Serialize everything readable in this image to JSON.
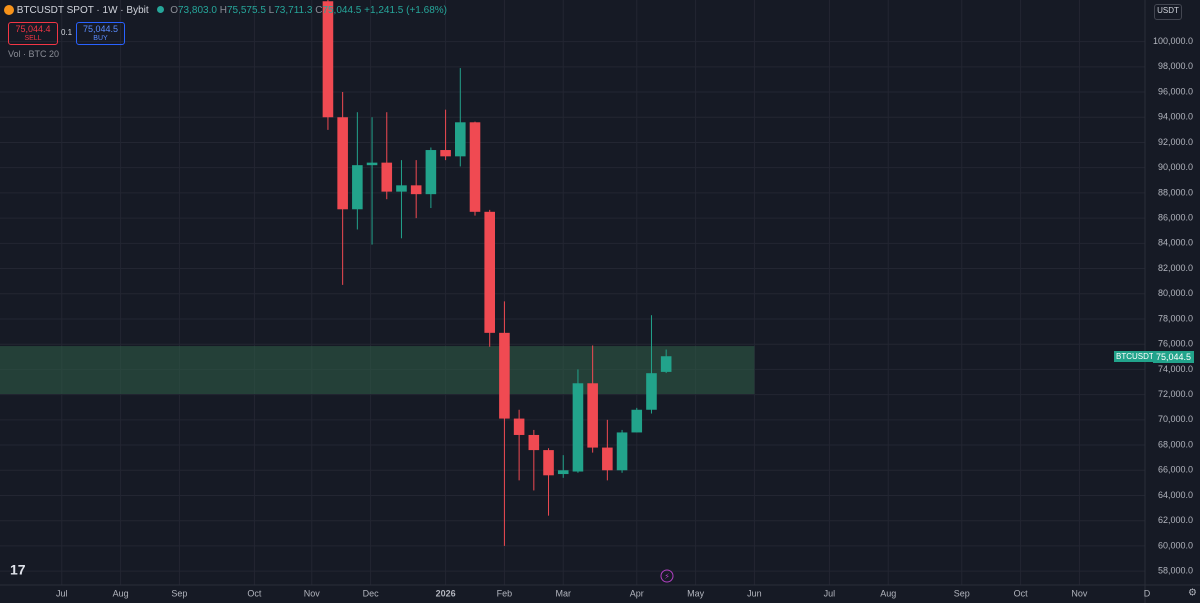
{
  "header": {
    "symbol": "BTCUSDT SPOT · 1W · Bybit",
    "o_label": "O",
    "o": "73,803.0",
    "h_label": "H",
    "h": "75,575.5",
    "l_label": "L",
    "l": "73,711.3",
    "c_label": "C",
    "c": "75,044.5",
    "change": "+1,241.5 (+1.68%)",
    "sell_price": "75,044.4",
    "sell": "SELL",
    "qty": "0.1",
    "buy_price": "75,044.5",
    "buy": "BUY",
    "volume": "Vol · BTC 20",
    "currency": "USDT",
    "price_tag_symbol": "BTCUSDT",
    "price_tag": "75,044.5"
  },
  "chart_data": {
    "type": "candlestick",
    "x": [
      0,
      1,
      2,
      3,
      4,
      5,
      6,
      7,
      8,
      9,
      10,
      11,
      12,
      13,
      14,
      15,
      16,
      17,
      18,
      19,
      20,
      21,
      22,
      23
    ],
    "open": [
      103200,
      94000,
      86700,
      90200,
      90400,
      88100,
      88600,
      87900,
      91400,
      90900,
      93600,
      86500,
      76900,
      70100,
      68800,
      67600,
      65700,
      65900,
      72900,
      67800,
      66000,
      69000,
      70800,
      73803
    ],
    "high": [
      103300,
      96000,
      94400,
      94000,
      94400,
      90600,
      90600,
      91600,
      94600,
      97900,
      93650,
      86650,
      79400,
      70800,
      69200,
      67750,
      67200,
      74000,
      75900,
      70000,
      69200,
      70950,
      78300,
      75575.5
    ],
    "low": [
      93000,
      80700,
      85100,
      83900,
      87500,
      84400,
      86000,
      86800,
      90600,
      90100,
      86200,
      75800,
      60000,
      65200,
      64400,
      62400,
      65400,
      65800,
      67400,
      65200,
      65800,
      69000,
      70500,
      73711.3
    ],
    "close": [
      94000,
      86700,
      90200,
      90400,
      88100,
      88600,
      87900,
      91400,
      90900,
      93600,
      86500,
      76900,
      70100,
      68800,
      67600,
      65600,
      66000,
      72900,
      67800,
      66000,
      69000,
      70800,
      73700,
      75044.5
    ],
    "up_color": "#22a38b",
    "down_color": "#f04a52",
    "zone": {
      "low": 72050,
      "high": 75850,
      "end": 29,
      "color": "#2f5a46"
    },
    "xlim": [
      -22.3,
      55.9
    ],
    "xticks": [
      {
        "value": -18.1,
        "label": "Jul"
      },
      {
        "value": -14.1,
        "label": "Aug"
      },
      {
        "value": -10.1,
        "label": "Sep"
      },
      {
        "value": -5.0,
        "label": "Oct"
      },
      {
        "value": -1.1,
        "label": "Nov"
      },
      {
        "value": 2.9,
        "label": "Dec"
      },
      {
        "value": 8.0,
        "label": "2026"
      },
      {
        "value": 12.0,
        "label": "Feb"
      },
      {
        "value": 16.0,
        "label": "Mar"
      },
      {
        "value": 21.0,
        "label": "Apr"
      },
      {
        "value": 25.0,
        "label": "May"
      },
      {
        "value": 29.0,
        "label": "Jun"
      },
      {
        "value": 34.1,
        "label": "Jul"
      },
      {
        "value": 38.1,
        "label": "Aug"
      },
      {
        "value": 43.1,
        "label": "Sep"
      },
      {
        "value": 47.1,
        "label": "Oct"
      },
      {
        "value": 51.1,
        "label": "Nov"
      },
      {
        "value": 55.7,
        "label": "D"
      }
    ],
    "ylim": [
      56900,
      103300
    ],
    "yticks": [
      {
        "value": 58000,
        "label": "58,000.0"
      },
      {
        "value": 60000,
        "label": "60,000.0"
      },
      {
        "value": 62000,
        "label": "62,000.0"
      },
      {
        "value": 64000,
        "label": "64,000.0"
      },
      {
        "value": 66000,
        "label": "66,000.0"
      },
      {
        "value": 68000,
        "label": "68,000.0"
      },
      {
        "value": 70000,
        "label": "70,000.0"
      },
      {
        "value": 72000,
        "label": "72,000.0"
      },
      {
        "value": 74000,
        "label": "74,000.0"
      },
      {
        "value": 76000,
        "label": "76,000.0"
      },
      {
        "value": 78000,
        "label": "78,000.0"
      },
      {
        "value": 80000,
        "label": "80,000.0"
      },
      {
        "value": 82000,
        "label": "82,000.0"
      },
      {
        "value": 84000,
        "label": "84,000.0"
      },
      {
        "value": 86000,
        "label": "86,000.0"
      },
      {
        "value": 88000,
        "label": "88,000.0"
      },
      {
        "value": 90000,
        "label": "90,000.0"
      },
      {
        "value": 92000,
        "label": "92,000.0"
      },
      {
        "value": 94000,
        "label": "94,000.0"
      },
      {
        "value": 96000,
        "label": "96,000.0"
      },
      {
        "value": 98000,
        "label": "98,000.0"
      },
      {
        "value": 100000,
        "label": "100,000.0"
      }
    ],
    "grid": true
  }
}
